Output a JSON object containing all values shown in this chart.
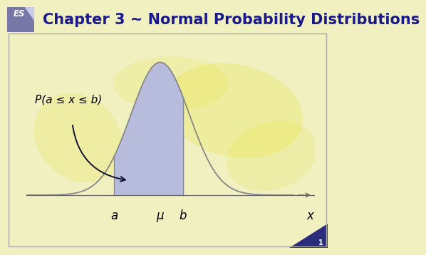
{
  "title": "Chapter 3 ~ Normal Probability Distributions",
  "title_fontsize": 15,
  "title_color": "#1a1a8c",
  "title_bg_color": "#c8cce8",
  "header_bg_color": "#7878a8",
  "es_label": "ES",
  "es_color": "white",
  "body_bg_color": "#f0f0c0",
  "curve_color": "#888888",
  "fill_color": "#b8bcdc",
  "fill_alpha": 1.0,
  "mu": 0.0,
  "sigma": 0.7,
  "a_val": -1.1,
  "b_val": 0.55,
  "x_min": -3.2,
  "x_max": 3.2,
  "label_a": "a",
  "label_b": "b",
  "label_mu": "μ",
  "label_x": "x",
  "prob_label": "P(a ≤ x ≤ b)",
  "page_num": "1",
  "arrow_color": "#111133",
  "axis_color": "#666666",
  "tick_label_fontsize": 12,
  "prob_label_fontsize": 11,
  "watermark_yellow": "#f5f000",
  "border_color": "#aaaaaa"
}
